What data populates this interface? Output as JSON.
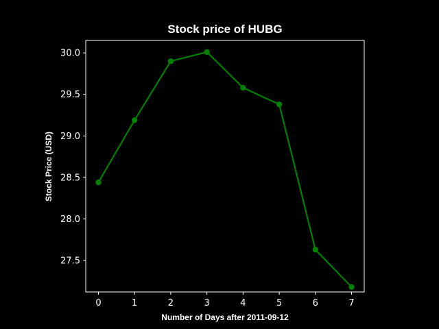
{
  "chart_data": {
    "type": "line",
    "title": "Stock price of HUBG",
    "xlabel": "Number of Days after 2011-09-12",
    "ylabel": "Stock Price (USD)",
    "x": [
      0,
      1,
      2,
      3,
      4,
      5,
      6,
      7
    ],
    "series": [
      {
        "values": [
          28.44,
          29.19,
          29.9,
          30.01,
          29.58,
          29.38,
          27.63,
          27.18
        ]
      }
    ],
    "xlim": [
      -0.35,
      7.35
    ],
    "ylim": [
      27.12,
      30.15
    ],
    "xticks": [
      "0",
      "1",
      "2",
      "3",
      "4",
      "5",
      "6",
      "7"
    ],
    "yticks": [
      "27.5",
      "28.0",
      "28.5",
      "29.0",
      "29.5",
      "30.0"
    ],
    "grid": false,
    "line_color": "#008000",
    "background_color": "#000000",
    "text_color": "#ffffff"
  }
}
